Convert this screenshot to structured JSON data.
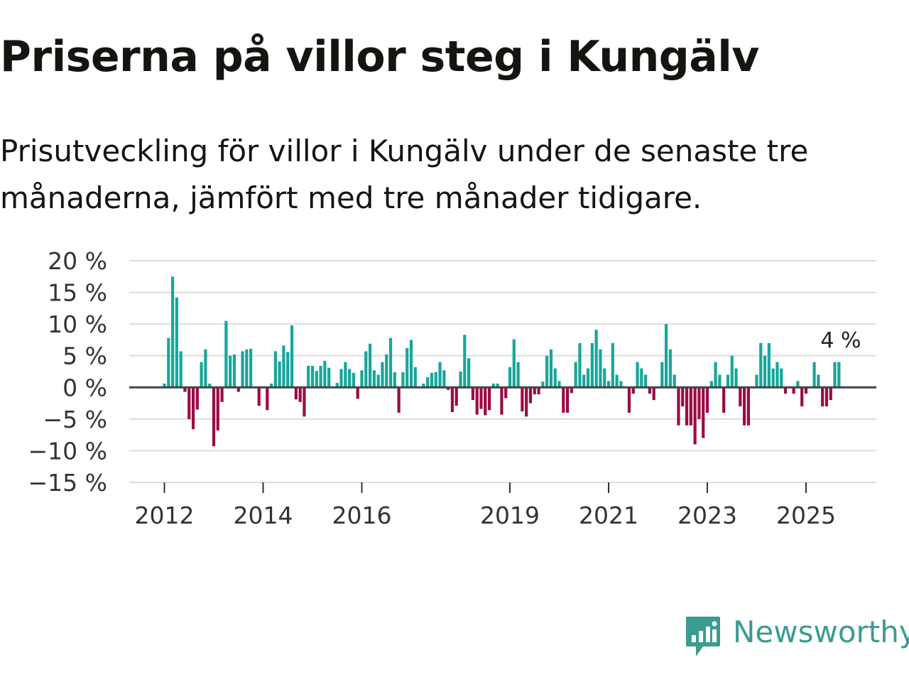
{
  "title": "Priserna på villor steg i Kungälv",
  "subtitle": "Prisutveckling för villor i Kungälv under de senaste tre månaderna, jämfört med tre månader tidigare.",
  "brand": {
    "name": "Newsworthy",
    "icon": "newsworthy-logo-icon",
    "color": "#3a9c91"
  },
  "colors": {
    "positive": "#17a69a",
    "negative": "#9b0b44",
    "grid": "#dddddd",
    "zero": "#444444"
  },
  "chart_data": {
    "type": "bar",
    "title": "Priserna på villor steg i Kungälv",
    "ylabel": "",
    "xlabel": "",
    "ylim": [
      -15,
      20
    ],
    "yticks": [
      20,
      15,
      10,
      5,
      0,
      -5,
      -10,
      -15
    ],
    "ytick_labels": [
      "20 %",
      "15 %",
      "10 %",
      "5 %",
      "0 %",
      "−5 %",
      "−10 %",
      "−15 %"
    ],
    "xticks": [
      {
        "label": "2012",
        "year": 2012
      },
      {
        "label": "2014",
        "year": 2014
      },
      {
        "label": "2016",
        "year": 2016
      },
      {
        "label": "2019",
        "year": 2019
      },
      {
        "label": "2021",
        "year": 2021
      },
      {
        "label": "2023",
        "year": 2023
      },
      {
        "label": "2025",
        "year": 2025
      }
    ],
    "start": {
      "year": 2012,
      "month": 1
    },
    "end_label": "4 %",
    "values": [
      0.6,
      7.8,
      17.5,
      14.2,
      5.7,
      -0.7,
      -5.0,
      -6.6,
      -3.5,
      4.0,
      6.0,
      0.6,
      -9.3,
      -6.8,
      -2.3,
      10.5,
      5.0,
      5.2,
      -0.7,
      5.7,
      6.0,
      6.1,
      0,
      -2.9,
      0,
      -3.6,
      0.6,
      5.7,
      4.1,
      6.6,
      5.6,
      9.8,
      -1.9,
      -2.3,
      -4.6,
      3.4,
      3.4,
      2.6,
      3.4,
      4.2,
      3.1,
      0,
      0.7,
      2.9,
      4.0,
      2.9,
      2.3,
      -1.8,
      2.7,
      5.7,
      6.9,
      2.7,
      2.0,
      4.0,
      5.2,
      7.8,
      2.4,
      -4.0,
      2.4,
      6.2,
      7.5,
      3.2,
      0,
      0.6,
      1.6,
      2.3,
      2.4,
      4.0,
      2.7,
      -0.4,
      -3.9,
      -2.9,
      2.5,
      8.3,
      4.6,
      -2.0,
      -4.3,
      -3.4,
      -4.4,
      -3.6,
      0.6,
      0.6,
      -4.3,
      -1.7,
      3.2,
      7.6,
      4.0,
      -3.8,
      -4.6,
      -2.5,
      -1.1,
      -1.1,
      0.9,
      5.0,
      6.0,
      3.0,
      1.0,
      -4.0,
      -4.0,
      -0.9,
      4.0,
      7.0,
      2.0,
      3.0,
      7.0,
      9.1,
      6.0,
      3.0,
      1.0,
      7.0,
      2.0,
      1.0,
      0,
      -4.0,
      -1.0,
      4.0,
      3.0,
      2.0,
      -1.0,
      -2.0,
      0,
      4.0,
      10.0,
      6.0,
      2.0,
      -6.0,
      -3.0,
      -6.0,
      -6.0,
      -9.0,
      -5.0,
      -8.0,
      -4.0,
      1.0,
      4.0,
      2.0,
      -4.0,
      2.0,
      5.0,
      3.0,
      -3.0,
      -6.0,
      -6.0,
      0,
      2.0,
      7.0,
      5.0,
      7.0,
      3.0,
      4.0,
      3.0,
      -1.0,
      0,
      -1.0,
      1.0,
      -3.0,
      -1.0,
      0,
      4.0,
      2.0,
      -3.0,
      -3.0,
      -2.0,
      4.0,
      4.0
    ]
  }
}
